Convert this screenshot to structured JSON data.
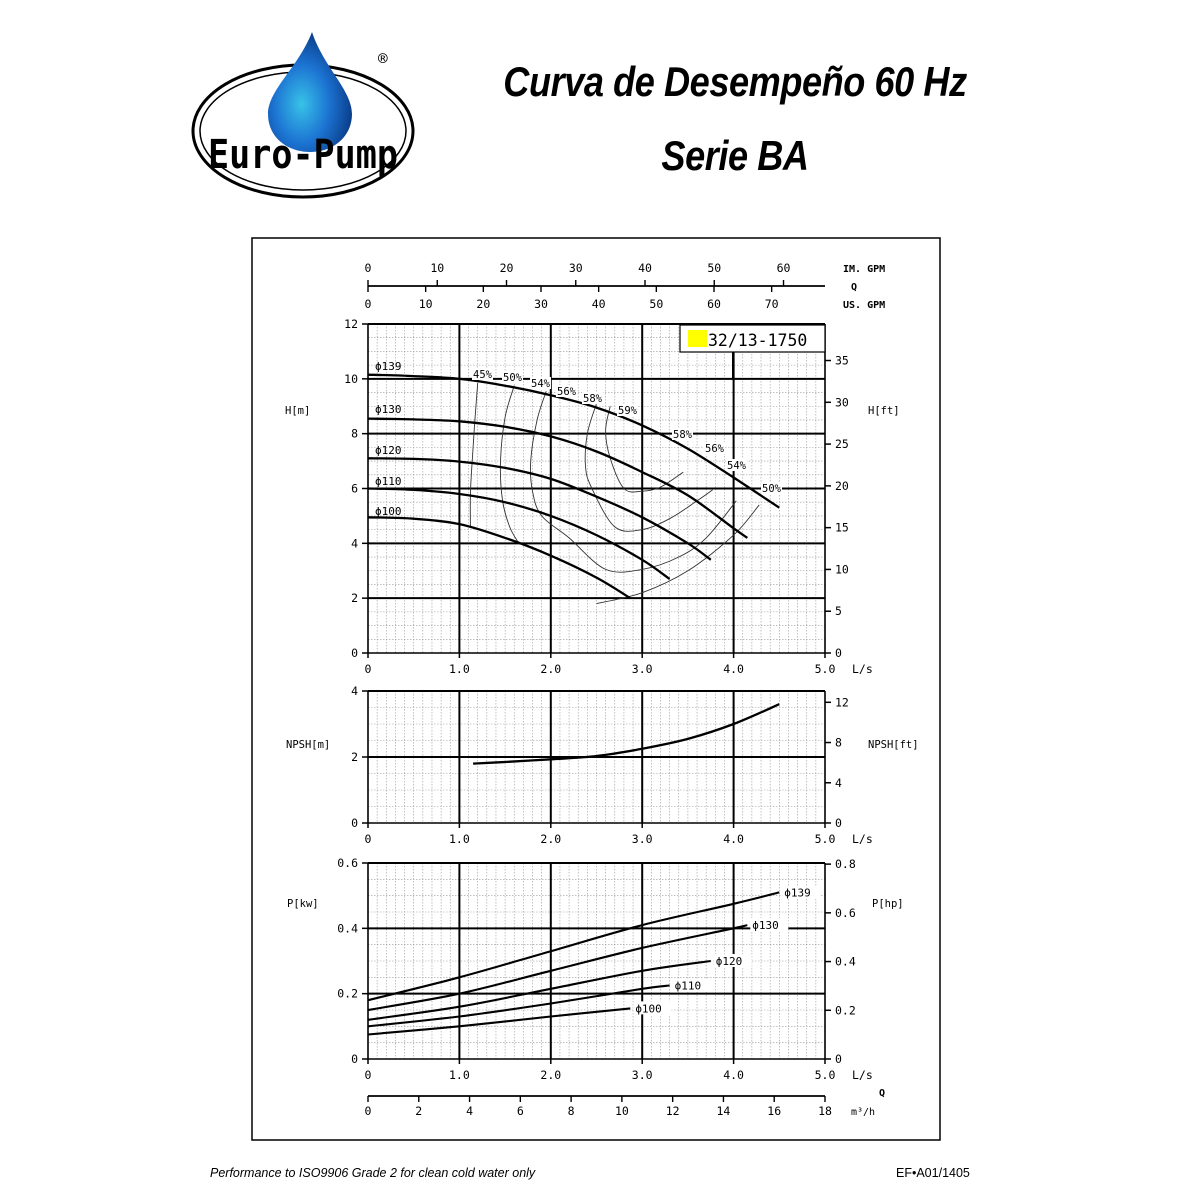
{
  "header": {
    "brand": "Euro-Pump",
    "registered_mark": "®",
    "title_line1": "Curva de Desempeño 60 Hz",
    "title_line2": "Serie BA"
  },
  "footer": {
    "note": "Performance to ISO9906 Grade 2 for clean cold water only",
    "doc_code": "EF•A01/1405"
  },
  "colors": {
    "model_badge": "#ffff00",
    "logo_drop": "#1f6fd0",
    "ink": "#000000"
  },
  "chart_data": [
    {
      "id": "head",
      "type": "line",
      "title": "32/13-1750",
      "model_label": "32/13-1750",
      "xlabel": "L/s",
      "ylabel": "H[m]",
      "ylabel_right": "H[ft]",
      "xlim": [
        0,
        5.0
      ],
      "ylim": [
        0,
        12
      ],
      "ylim_right": [
        0,
        39.37
      ],
      "x_ticks": [
        "0",
        "1.0",
        "2.0",
        "3.0",
        "4.0",
        "5.0"
      ],
      "y_ticks": [
        "0",
        "2",
        "4",
        "6",
        "8",
        "10",
        "12"
      ],
      "y_ticks_right": [
        "0",
        "5",
        "10",
        "15",
        "20",
        "25",
        "30",
        "35"
      ],
      "grid": true,
      "top_axis_im_gpm": {
        "label": "IM. GPM",
        "ticks": [
          "0",
          "10",
          "20",
          "30",
          "40",
          "50",
          "60"
        ]
      },
      "top_axis_us_gpm": {
        "label": "US. GPM",
        "ticks": [
          "0",
          "10",
          "20",
          "30",
          "40",
          "50",
          "60",
          "70"
        ]
      },
      "top_axis_q_label": "Q",
      "series": [
        {
          "name": "ϕ139",
          "x": [
            0,
            0.5,
            1.0,
            1.5,
            2.0,
            2.5,
            3.0,
            3.5,
            4.0,
            4.5
          ],
          "y": [
            10.15,
            10.1,
            10.0,
            9.75,
            9.4,
            8.95,
            8.3,
            7.45,
            6.4,
            5.3
          ]
        },
        {
          "name": "ϕ130",
          "x": [
            0,
            0.5,
            1.0,
            1.5,
            2.0,
            2.5,
            3.0,
            3.5,
            4.0,
            4.15
          ],
          "y": [
            8.55,
            8.52,
            8.45,
            8.25,
            7.9,
            7.35,
            6.6,
            5.75,
            4.55,
            4.2
          ]
        },
        {
          "name": "ϕ120",
          "x": [
            0,
            0.5,
            1.0,
            1.5,
            2.0,
            2.5,
            3.0,
            3.5,
            3.75
          ],
          "y": [
            7.1,
            7.08,
            6.98,
            6.75,
            6.35,
            5.7,
            4.95,
            4.0,
            3.4
          ]
        },
        {
          "name": "ϕ110",
          "x": [
            0,
            0.5,
            1.0,
            1.5,
            2.0,
            2.5,
            3.0,
            3.3
          ],
          "y": [
            6.0,
            5.95,
            5.8,
            5.5,
            5.0,
            4.3,
            3.4,
            2.7
          ]
        },
        {
          "name": "ϕ100",
          "x": [
            0,
            0.5,
            1.0,
            1.5,
            2.0,
            2.5,
            2.87
          ],
          "y": [
            4.95,
            4.9,
            4.7,
            4.2,
            3.55,
            2.75,
            2.0
          ]
        }
      ],
      "efficiency_labels": [
        "45%",
        "50%",
        "54%",
        "56%",
        "58%",
        "59%",
        "58%",
        "56%",
        "54%",
        "50%"
      ],
      "efficiency_contours": [
        {
          "name": "45%",
          "x": [
            1.2,
            1.17,
            1.14,
            1.12,
            1.12
          ],
          "y": [
            9.85,
            8.5,
            7.0,
            5.8,
            4.6
          ]
        },
        {
          "name": "50%",
          "x": [
            1.6,
            1.5,
            1.45,
            1.47,
            1.55,
            1.65
          ],
          "y": [
            9.75,
            8.6,
            7.0,
            5.6,
            4.6,
            4.0
          ]
        },
        {
          "name": "54%",
          "x": [
            1.95,
            1.85,
            1.78,
            1.8,
            1.9,
            2.2,
            2.6,
            3.0,
            3.4,
            3.7,
            4.03
          ],
          "y": [
            9.55,
            8.5,
            7.0,
            5.9,
            5.0,
            4.2,
            3.05,
            3.05,
            3.5,
            4.2,
            5.55
          ]
        },
        {
          "name": "56%",
          "x": [
            2.5,
            2.4,
            2.38,
            2.45,
            2.7,
            3.0,
            3.3,
            3.6,
            3.77
          ],
          "y": [
            9.1,
            8.0,
            6.8,
            6.0,
            4.6,
            4.5,
            4.9,
            5.55,
            5.95
          ]
        },
        {
          "name": "58%",
          "x": [
            2.65,
            2.6,
            2.65,
            2.8,
            3.0,
            3.2,
            3.45
          ],
          "y": [
            9.0,
            8.1,
            7.1,
            6.0,
            5.9,
            6.05,
            6.6
          ]
        },
        {
          "name": "50% right",
          "x": [
            2.5,
            3.0,
            3.5,
            4.0,
            4.28
          ],
          "y": [
            1.8,
            2.2,
            3.0,
            4.3,
            5.4
          ]
        }
      ]
    },
    {
      "id": "npsh",
      "type": "line",
      "xlabel": "L/s",
      "ylabel": "NPSH[m]",
      "ylabel_right": "NPSH[ft]",
      "xlim": [
        0,
        5.0
      ],
      "ylim": [
        0,
        4
      ],
      "ylim_right": [
        0,
        13.12
      ],
      "x_ticks": [
        "0",
        "1.0",
        "2.0",
        "3.0",
        "4.0",
        "5.0"
      ],
      "y_ticks": [
        "0",
        "2",
        "4"
      ],
      "y_ticks_right": [
        "0",
        "4",
        "8",
        "12"
      ],
      "grid": true,
      "series": [
        {
          "name": "NPSH",
          "x": [
            1.15,
            1.5,
            2.0,
            2.5,
            3.0,
            3.5,
            4.0,
            4.5
          ],
          "y": [
            1.8,
            1.85,
            1.93,
            2.03,
            2.25,
            2.55,
            3.0,
            3.6
          ]
        }
      ]
    },
    {
      "id": "power",
      "type": "line",
      "xlabel": "L/s",
      "ylabel": "P[kw]",
      "ylabel_right": "P[hp]",
      "xlim": [
        0,
        5.0
      ],
      "ylim": [
        0,
        0.6
      ],
      "ylim_right": [
        0,
        0.8
      ],
      "x_ticks": [
        "0",
        "1.0",
        "2.0",
        "3.0",
        "4.0",
        "5.0"
      ],
      "y_ticks": [
        "0",
        "0.2",
        "0.4",
        "0.6"
      ],
      "y_ticks_right": [
        "0",
        "0.2",
        "0.4",
        "0.6",
        "0.8"
      ],
      "grid": true,
      "bottom_axis_m3h": {
        "label": "m³/h",
        "ticks": [
          "0",
          "2",
          "4",
          "6",
          "8",
          "10",
          "12",
          "14",
          "16",
          "18"
        ]
      },
      "bottom_axis_q_label": "Q",
      "series": [
        {
          "name": "ϕ139",
          "x": [
            0,
            1.0,
            2.0,
            3.0,
            4.0,
            4.5
          ],
          "y": [
            0.18,
            0.25,
            0.33,
            0.41,
            0.475,
            0.51
          ]
        },
        {
          "name": "ϕ130",
          "x": [
            0,
            1.0,
            2.0,
            3.0,
            4.0,
            4.15
          ],
          "y": [
            0.15,
            0.2,
            0.27,
            0.34,
            0.4,
            0.41
          ]
        },
        {
          "name": "ϕ120",
          "x": [
            0,
            1.0,
            2.0,
            3.0,
            3.75
          ],
          "y": [
            0.12,
            0.16,
            0.215,
            0.27,
            0.3
          ]
        },
        {
          "name": "ϕ110",
          "x": [
            0,
            1.0,
            2.0,
            3.0,
            3.3
          ],
          "y": [
            0.1,
            0.13,
            0.17,
            0.215,
            0.225
          ]
        },
        {
          "name": "ϕ100",
          "x": [
            0,
            1.0,
            2.0,
            2.87
          ],
          "y": [
            0.075,
            0.1,
            0.13,
            0.155
          ]
        }
      ]
    }
  ]
}
